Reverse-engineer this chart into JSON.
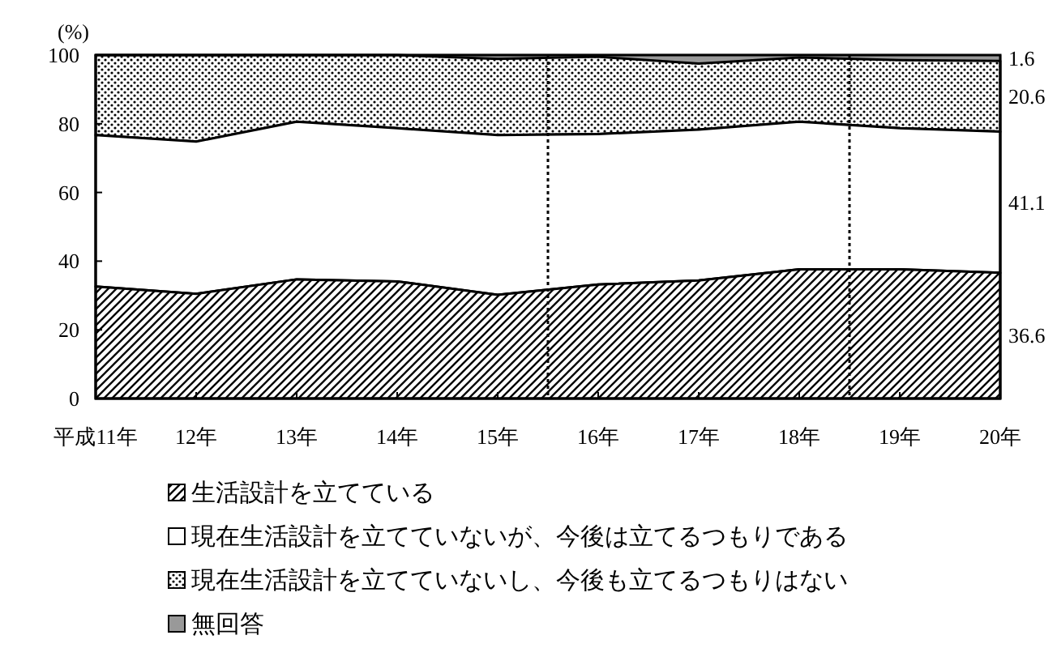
{
  "chart_data": {
    "type": "area",
    "stacked": true,
    "ylabel": "(%)",
    "x": [
      11,
      12,
      13,
      14,
      15,
      16,
      17,
      18,
      19,
      20
    ],
    "xlim": [
      11,
      20
    ],
    "xticks": [
      {
        "value": 11,
        "label": "平成11年"
      },
      {
        "value": 12,
        "label": "12年"
      },
      {
        "value": 13,
        "label": "13年"
      },
      {
        "value": 14,
        "label": "14年"
      },
      {
        "value": 15,
        "label": "15年"
      },
      {
        "value": 16,
        "label": "16年"
      },
      {
        "value": 17,
        "label": "17年"
      },
      {
        "value": 18,
        "label": "18年"
      },
      {
        "value": 19,
        "label": "19年"
      },
      {
        "value": 20,
        "label": "20年"
      }
    ],
    "ylim": [
      0,
      100
    ],
    "yticks": [
      0,
      20,
      40,
      60,
      80,
      100
    ],
    "series": [
      {
        "name": "生活設計を立てている",
        "color": "#000000",
        "values": [
          32.6,
          30.5,
          34.7,
          34.1,
          30.2,
          33.2,
          34.4,
          37.6,
          37.6,
          36.6
        ],
        "value_labels": [
          null,
          null,
          null,
          null,
          null,
          null,
          null,
          null,
          null,
          "36.6"
        ]
      },
      {
        "name": "現在生活設計を立てていないが、今後は立てるつもりである",
        "color": "#ffffff",
        "values": [
          44.1,
          44.3,
          45.9,
          44.6,
          46.5,
          43.8,
          43.9,
          43.0,
          41.1,
          41.1
        ],
        "value_labels": [
          null,
          null,
          null,
          null,
          null,
          null,
          null,
          null,
          null,
          "41.1"
        ]
      },
      {
        "name": "現在生活設計を立てていないし、今後も立てるつもりはない",
        "color": "#000000",
        "values": [
          23.3,
          25.2,
          19.4,
          21.3,
          22.2,
          22.5,
          19.2,
          18.7,
          19.8,
          20.6
        ],
        "value_labels": [
          null,
          null,
          null,
          null,
          null,
          null,
          null,
          null,
          null,
          "20.6"
        ]
      },
      {
        "name": "無回答",
        "color": "#999999",
        "values": [
          0,
          0,
          0,
          0,
          1.1,
          0.5,
          2.5,
          0.7,
          1.5,
          1.6
        ],
        "value_labels": [
          null,
          null,
          null,
          null,
          null,
          null,
          null,
          null,
          null,
          "1.6"
        ]
      }
    ],
    "ref_lines": [
      {
        "axis": "x",
        "value": 15.5,
        "line_style": "dotted"
      },
      {
        "axis": "x",
        "value": 18.5,
        "line_style": "dotted"
      }
    ],
    "legend": "bottom",
    "line_style": "solid"
  }
}
